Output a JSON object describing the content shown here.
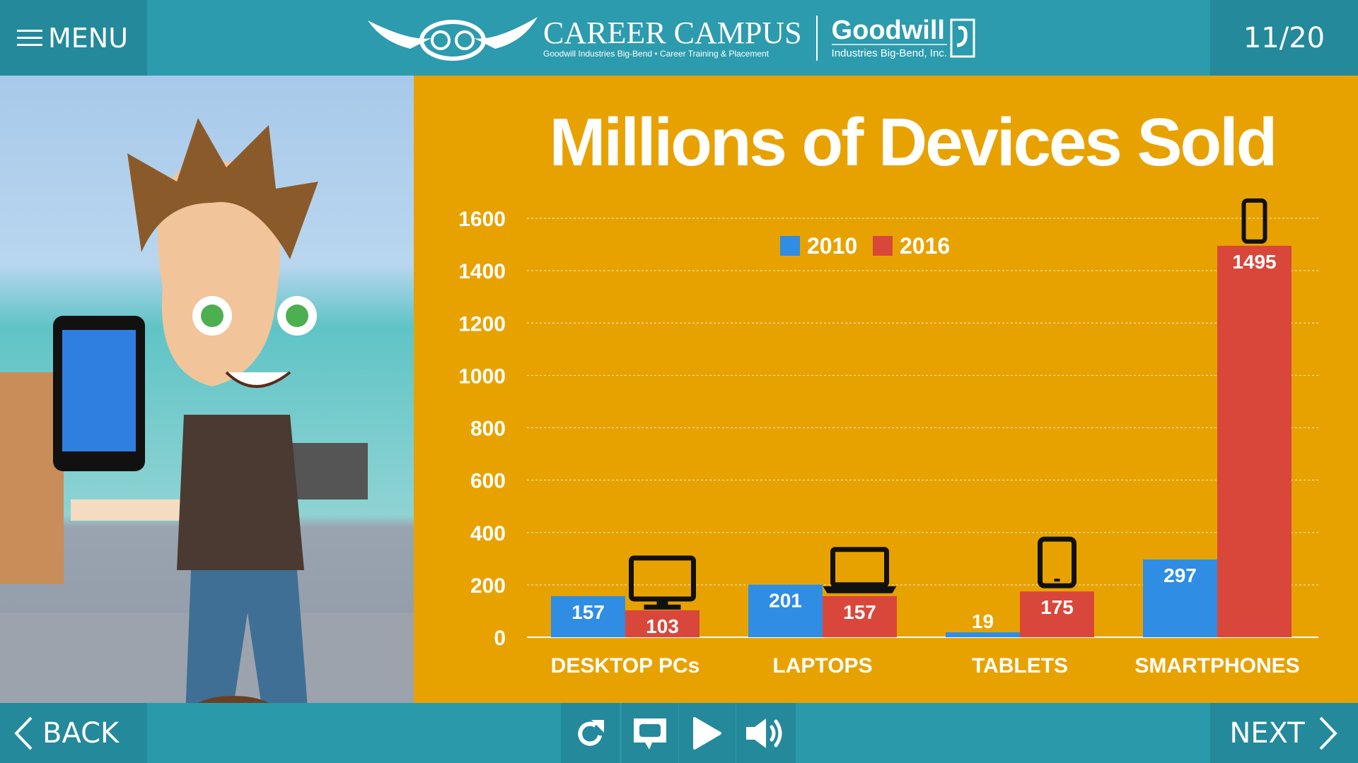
{
  "header": {
    "menu_label": "MENU",
    "page_indicator": "11/20",
    "logo": {
      "name": "CAREER CAMPUS",
      "tagline": "Goodwill Industries Big-Bend • Career Training & Placement",
      "partner": "Goodwill",
      "partner_sub": "Industries Big-Bend, Inc."
    }
  },
  "footer": {
    "back_label": "BACK",
    "next_label": "NEXT",
    "controls": [
      "replay-icon",
      "captions-icon",
      "play-icon",
      "volume-icon"
    ]
  },
  "colors": {
    "header": "#2c9bad",
    "panel": "#e8a200",
    "series_2010": "#2f8de4",
    "series_2016": "#d9473b"
  },
  "chart_data": {
    "type": "bar",
    "title": "Millions of Devices Sold",
    "categories": [
      "DESKTOP PCs",
      "LAPTOPS",
      "TABLETS",
      "SMARTPHONES"
    ],
    "series": [
      {
        "name": "2010",
        "values": [
          157,
          201,
          19,
          297
        ]
      },
      {
        "name": "2016",
        "values": [
          103,
          157,
          175,
          1495
        ]
      }
    ],
    "ylim": [
      0,
      1600
    ],
    "yticks": [
      "0",
      "200",
      "400",
      "600",
      "800",
      "1000",
      "1200",
      "1400",
      "1600"
    ],
    "grid": true,
    "legend": "top-center",
    "category_icons": [
      "desktop-monitor-icon",
      "laptop-icon",
      "tablet-icon",
      "smartphone-icon"
    ]
  }
}
